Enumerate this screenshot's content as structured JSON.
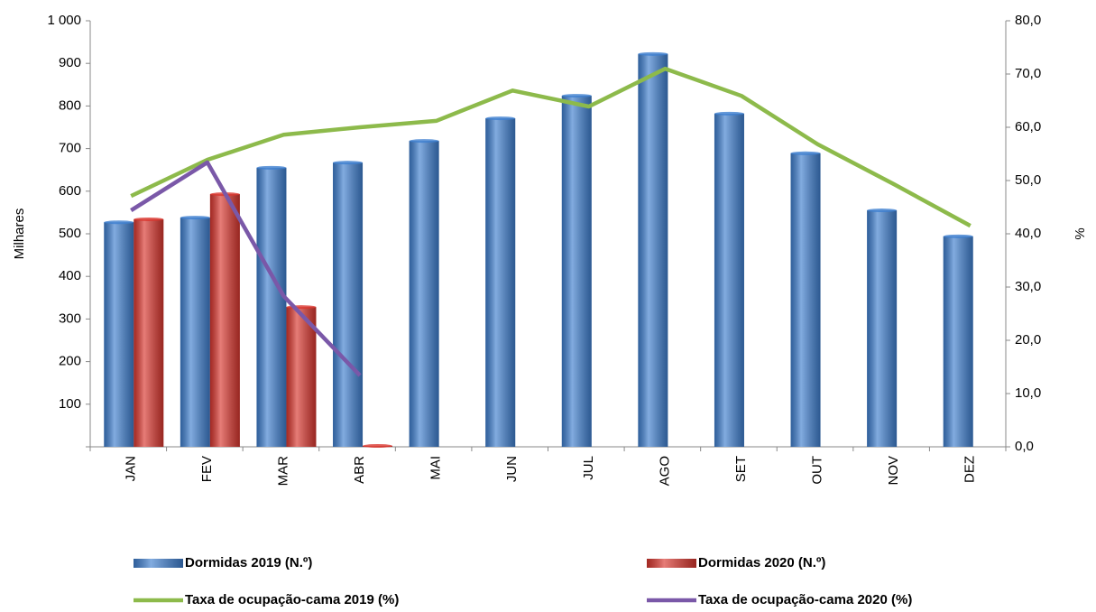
{
  "chart_data": {
    "type": "combo",
    "y_label": "Milhares",
    "y2_label": "%",
    "categories": [
      "JAN",
      "FEV",
      "MAR",
      "ABR",
      "MAI",
      "JUN",
      "JUL",
      "AGO",
      "SET",
      "OUT",
      "NOV",
      "DEZ"
    ],
    "series": [
      {
        "name": "Dormidas 2019 (N.º)",
        "type": "bar",
        "color": "#3f7fcf",
        "values": [
          527,
          538,
          655,
          667,
          718,
          771,
          824,
          922,
          782,
          689,
          555,
          494
        ]
      },
      {
        "name": "Dormidas 2020 (N.º)",
        "type": "bar",
        "color": "#d9362e",
        "values": [
          534,
          593,
          328,
          2,
          null,
          null,
          null,
          null,
          null,
          null,
          null,
          null
        ]
      },
      {
        "name": "Taxa de ocupação-cama 2019 (%)",
        "type": "line",
        "axis": "y2",
        "color": "#8dba4b",
        "values": [
          47.1,
          53.9,
          58.6,
          60.0,
          61.2,
          66.9,
          63.9,
          71.0,
          65.9,
          56.8,
          49.3,
          41.5
        ]
      },
      {
        "name": "Taxa de ocupação-cama 2020 (%)",
        "type": "line",
        "axis": "y2",
        "color": "#7a58a8",
        "values": [
          44.4,
          53.4,
          28.3,
          13.4,
          null,
          null,
          null,
          null,
          null,
          null,
          null,
          null
        ]
      }
    ],
    "ylim": [
      0,
      1000
    ],
    "yticks": [
      100,
      200,
      300,
      400,
      500,
      600,
      700,
      800,
      900,
      {
        "value": 1000,
        "label": "1 000"
      }
    ],
    "y2lim": [
      0,
      80
    ],
    "y2ticks": [
      {
        "value": 0,
        "label": "0,0"
      },
      {
        "value": 10,
        "label": "10,0"
      },
      {
        "value": 20,
        "label": "20,0"
      },
      {
        "value": 30,
        "label": "30,0"
      },
      {
        "value": 40,
        "label": "40,0"
      },
      {
        "value": 50,
        "label": "50,0"
      },
      {
        "value": 60,
        "label": "60,0"
      },
      {
        "value": 70,
        "label": "70,0"
      },
      {
        "value": 80,
        "label": "80,0"
      }
    ]
  }
}
